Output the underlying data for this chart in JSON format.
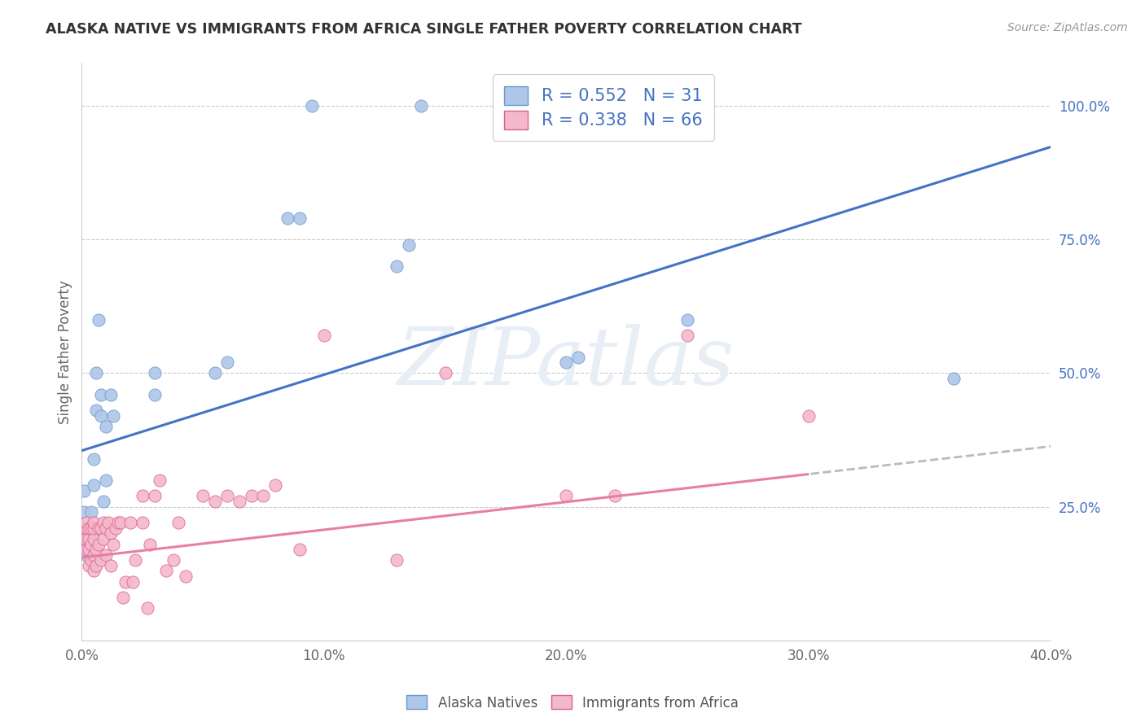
{
  "title": "ALASKA NATIVE VS IMMIGRANTS FROM AFRICA SINGLE FATHER POVERTY CORRELATION CHART",
  "source": "Source: ZipAtlas.com",
  "ylabel": "Single Father Poverty",
  "xlim": [
    0.0,
    0.4
  ],
  "ylim": [
    0.0,
    1.08
  ],
  "xtick_labels": [
    "0.0%",
    "10.0%",
    "20.0%",
    "30.0%",
    "40.0%"
  ],
  "xtick_values": [
    0.0,
    0.1,
    0.2,
    0.3,
    0.4
  ],
  "ytick_labels": [
    "25.0%",
    "50.0%",
    "75.0%",
    "100.0%"
  ],
  "ytick_values": [
    0.25,
    0.5,
    0.75,
    1.0
  ],
  "alaska_color": "#aec6e8",
  "africa_color": "#f4b8cb",
  "alaska_line_color": "#4472c4",
  "africa_line_color": "#e87fa0",
  "alaska_edge_color": "#6699cc",
  "africa_edge_color": "#d96090",
  "R_alaska": 0.552,
  "N_alaska": 31,
  "R_africa": 0.338,
  "N_africa": 66,
  "legend_text_color": "#4472c4",
  "alaska_intercept": 0.355,
  "alaska_slope": 1.42,
  "africa_intercept": 0.155,
  "africa_slope": 0.52,
  "alaska_x": [
    0.001,
    0.001,
    0.002,
    0.003,
    0.004,
    0.005,
    0.005,
    0.006,
    0.006,
    0.007,
    0.008,
    0.008,
    0.009,
    0.01,
    0.01,
    0.012,
    0.013,
    0.03,
    0.03,
    0.055,
    0.06,
    0.085,
    0.09,
    0.095,
    0.13,
    0.135,
    0.14,
    0.2,
    0.205,
    0.25,
    0.36
  ],
  "alaska_y": [
    0.24,
    0.28,
    0.16,
    0.19,
    0.24,
    0.29,
    0.34,
    0.43,
    0.5,
    0.6,
    0.42,
    0.46,
    0.26,
    0.3,
    0.4,
    0.46,
    0.42,
    0.46,
    0.5,
    0.5,
    0.52,
    0.79,
    0.79,
    1.0,
    0.7,
    0.74,
    1.0,
    0.52,
    0.53,
    0.6,
    0.49
  ],
  "africa_x": [
    0.001,
    0.001,
    0.001,
    0.002,
    0.002,
    0.002,
    0.002,
    0.003,
    0.003,
    0.003,
    0.003,
    0.004,
    0.004,
    0.004,
    0.005,
    0.005,
    0.005,
    0.005,
    0.005,
    0.006,
    0.006,
    0.007,
    0.007,
    0.008,
    0.008,
    0.009,
    0.009,
    0.01,
    0.01,
    0.011,
    0.012,
    0.012,
    0.013,
    0.014,
    0.015,
    0.016,
    0.017,
    0.018,
    0.02,
    0.021,
    0.022,
    0.025,
    0.025,
    0.027,
    0.028,
    0.03,
    0.032,
    0.035,
    0.038,
    0.04,
    0.043,
    0.05,
    0.055,
    0.06,
    0.065,
    0.07,
    0.075,
    0.08,
    0.09,
    0.1,
    0.13,
    0.15,
    0.2,
    0.22,
    0.25,
    0.3
  ],
  "africa_y": [
    0.19,
    0.2,
    0.21,
    0.17,
    0.19,
    0.21,
    0.22,
    0.14,
    0.17,
    0.19,
    0.21,
    0.15,
    0.18,
    0.21,
    0.13,
    0.16,
    0.19,
    0.21,
    0.22,
    0.14,
    0.17,
    0.18,
    0.21,
    0.15,
    0.21,
    0.22,
    0.19,
    0.16,
    0.21,
    0.22,
    0.2,
    0.14,
    0.18,
    0.21,
    0.22,
    0.22,
    0.08,
    0.11,
    0.22,
    0.11,
    0.15,
    0.22,
    0.27,
    0.06,
    0.18,
    0.27,
    0.3,
    0.13,
    0.15,
    0.22,
    0.12,
    0.27,
    0.26,
    0.27,
    0.26,
    0.27,
    0.27,
    0.29,
    0.17,
    0.57,
    0.15,
    0.5,
    0.27,
    0.27,
    0.57,
    0.42
  ],
  "background_color": "#ffffff",
  "grid_color": "#cccccc",
  "watermark": "ZIPatlas"
}
